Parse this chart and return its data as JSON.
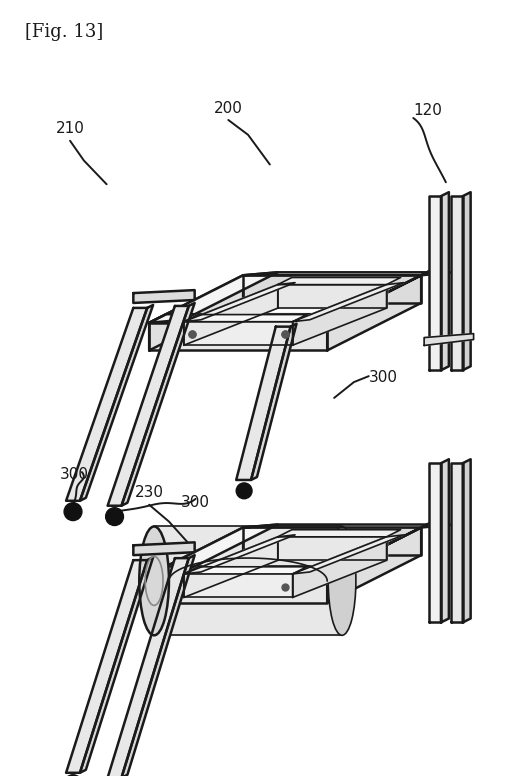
{
  "title": "[Fig. 13]",
  "title_fontsize": 13,
  "background_color": "#ffffff",
  "line_color": "#1a1a1a",
  "label_fontsize": 11,
  "fig_width": 5.1,
  "fig_height": 7.8,
  "dpi": 100
}
